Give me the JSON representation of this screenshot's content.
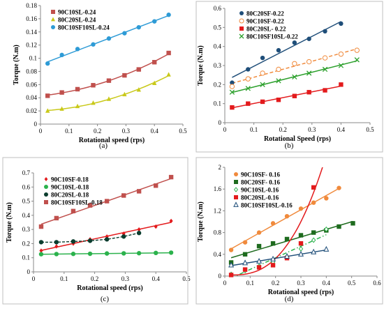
{
  "chart_data": [
    {
      "type": "line",
      "panel_label": "(a)",
      "xlabel": "Rotational speed (rps)",
      "ylabel": "Torque (N.m)",
      "xlim": [
        0,
        0.5
      ],
      "ylim": [
        0,
        0.18
      ],
      "xticks": [
        "0",
        "0.1",
        "0.2",
        "0.3",
        "0.4",
        "0.5"
      ],
      "yticks": [
        "0",
        "0.02",
        "0.04",
        "0.06",
        "0.08",
        "0.1",
        "0.12",
        "0.14",
        "0.16",
        "0.18"
      ],
      "legend_position": "top-left",
      "series": [
        {
          "name": "90C10SL-0.24",
          "color": "#c0504d",
          "marker": "square",
          "x": [
            0.025,
            0.075,
            0.13,
            0.185,
            0.24,
            0.295,
            0.345,
            0.4,
            0.45
          ],
          "y": [
            0.043,
            0.048,
            0.053,
            0.059,
            0.066,
            0.074,
            0.083,
            0.094,
            0.108
          ]
        },
        {
          "name": "80C20SL-0.24",
          "color": "#c9c91a",
          "marker": "triangle",
          "x": [
            0.025,
            0.075,
            0.13,
            0.185,
            0.24,
            0.295,
            0.345,
            0.4,
            0.45
          ],
          "y": [
            0.02,
            0.023,
            0.027,
            0.032,
            0.038,
            0.045,
            0.052,
            0.062,
            0.075
          ]
        },
        {
          "name": "80C10SF10SL-0.24",
          "color": "#2e9bd6",
          "marker": "circle",
          "x": [
            0.025,
            0.075,
            0.13,
            0.185,
            0.24,
            0.295,
            0.345,
            0.4,
            0.45
          ],
          "y": [
            0.092,
            0.105,
            0.114,
            0.121,
            0.13,
            0.138,
            0.147,
            0.156,
            0.166
          ]
        }
      ]
    },
    {
      "type": "line",
      "panel_label": "(b)",
      "xlabel": "Rotational Speed (rps)",
      "ylabel": "Torque (N.m)",
      "xlim": [
        0,
        0.5
      ],
      "ylim": [
        0,
        0.6
      ],
      "xticks": [
        "0",
        "0.1",
        "0.2",
        "0.3",
        "0.4",
        "0.5"
      ],
      "yticks": [
        "0",
        "0.1",
        "0.2",
        "0.3",
        "0.4",
        "0.5",
        "0.6"
      ],
      "legend_position": "top-left",
      "series": [
        {
          "name": "80C20SF-0.22",
          "color": "#1f4e79",
          "marker": "circle",
          "x": [
            0.025,
            0.08,
            0.13,
            0.185,
            0.24,
            0.29,
            0.345,
            0.4
          ],
          "y": [
            0.21,
            0.28,
            0.34,
            0.38,
            0.42,
            0.44,
            0.48,
            0.52
          ]
        },
        {
          "name": "90C10SF-0.22",
          "color": "#f08a3c",
          "marker": "open-circle",
          "x": [
            0.025,
            0.08,
            0.13,
            0.185,
            0.24,
            0.29,
            0.345,
            0.4,
            0.455
          ],
          "y": [
            0.19,
            0.23,
            0.26,
            0.28,
            0.31,
            0.32,
            0.34,
            0.36,
            0.38
          ]
        },
        {
          "name": "80C20SL- 0.22",
          "color": "#e31a1c",
          "marker": "square",
          "x": [
            0.025,
            0.08,
            0.13,
            0.185,
            0.24,
            0.29,
            0.345,
            0.4
          ],
          "y": [
            0.08,
            0.1,
            0.11,
            0.12,
            0.14,
            0.16,
            0.17,
            0.2
          ]
        },
        {
          "name": "80C10SF10SL-0.22",
          "color": "#2ca02c",
          "marker": "x",
          "x": [
            0.025,
            0.08,
            0.13,
            0.185,
            0.24,
            0.29,
            0.345,
            0.4,
            0.455
          ],
          "y": [
            0.16,
            0.18,
            0.2,
            0.22,
            0.24,
            0.26,
            0.28,
            0.3,
            0.33
          ]
        }
      ]
    },
    {
      "type": "line",
      "panel_label": "(c)",
      "xlabel": "Rotational speed (rps)",
      "ylabel": "Torque (N.m)",
      "xlim": [
        0,
        0.5
      ],
      "ylim": [
        0,
        0.7
      ],
      "xticks": [
        "0",
        "0.1",
        "0.2",
        "0.3",
        "0.4",
        "0.5"
      ],
      "yticks": [
        "0",
        "0.1",
        "0.2",
        "0.3",
        "0.4",
        "0.5",
        "0.6",
        "0.7"
      ],
      "legend_position": "top-left",
      "series": [
        {
          "name": "90C10SF-0.18",
          "color": "#e31a1c",
          "marker": "diamond",
          "x": [
            0.025,
            0.075,
            0.13,
            0.185,
            0.24,
            0.295,
            0.345,
            0.4,
            0.45
          ],
          "y": [
            0.15,
            0.18,
            0.2,
            0.23,
            0.25,
            0.27,
            0.3,
            0.32,
            0.36
          ]
        },
        {
          "name": "90C10SL-0.18",
          "color": "#2bb24c",
          "marker": "circle",
          "x": [
            0.025,
            0.075,
            0.13,
            0.185,
            0.24,
            0.295,
            0.345,
            0.4,
            0.45
          ],
          "y": [
            0.125,
            0.126,
            0.127,
            0.128,
            0.13,
            0.131,
            0.132,
            0.134,
            0.136
          ]
        },
        {
          "name": "80C20SL-0.18",
          "color": "#0b3d2e",
          "marker": "circle",
          "x": [
            0.025,
            0.075,
            0.13,
            0.185,
            0.24,
            0.295,
            0.345
          ],
          "y": [
            0.21,
            0.21,
            0.215,
            0.22,
            0.23,
            0.25,
            0.275
          ]
        },
        {
          "name": "80C10SF10SL-0.18",
          "color": "#c0504d",
          "marker": "square",
          "x": [
            0.025,
            0.075,
            0.13,
            0.185,
            0.24,
            0.295,
            0.345,
            0.4,
            0.45
          ],
          "y": [
            0.32,
            0.38,
            0.43,
            0.47,
            0.5,
            0.54,
            0.57,
            0.61,
            0.67
          ]
        }
      ]
    },
    {
      "type": "line",
      "panel_label": "(d)",
      "xlabel": "Rotational speed (rps)",
      "ylabel": "Torque (N.m)",
      "xlim": [
        0,
        0.6
      ],
      "ylim": [
        0,
        2
      ],
      "xticks": [
        "0",
        "0.1",
        "0.2",
        "0.3",
        "0.4",
        "0.5",
        "0.6"
      ],
      "yticks": [
        "0",
        "0.4",
        "0.8",
        "1.2",
        "1.6",
        "2"
      ],
      "legend_position": "top-left",
      "series": [
        {
          "name": "90C10SF- 0.16",
          "color": "#f08a3c",
          "marker": "circle",
          "x": [
            0.025,
            0.08,
            0.135,
            0.19,
            0.245,
            0.3,
            0.35,
            0.4,
            0.45
          ],
          "y": [
            0.48,
            0.62,
            0.8,
            0.97,
            1.1,
            1.24,
            1.35,
            1.43,
            1.62
          ]
        },
        {
          "name": "80C20SF- 0.16",
          "color": "#1e6b1e",
          "marker": "square",
          "x": [
            0.025,
            0.08,
            0.135,
            0.19,
            0.245,
            0.3,
            0.35,
            0.4,
            0.45,
            0.505
          ],
          "y": [
            0.25,
            0.4,
            0.55,
            0.6,
            0.68,
            0.75,
            0.8,
            0.84,
            0.91,
            0.97
          ]
        },
        {
          "name": "90C10SL-0.16",
          "color": "#2bb24c",
          "marker": "open-diamond",
          "x": [
            0.025,
            0.08,
            0.135,
            0.19,
            0.245,
            0.3,
            0.35,
            0.4
          ],
          "y": [
            0.03,
            0.1,
            0.18,
            0.26,
            0.36,
            0.5,
            0.66,
            0.86
          ]
        },
        {
          "name": "80C20SL-0.16",
          "color": "#e31a1c",
          "marker": "square",
          "x": [
            0.025,
            0.08,
            0.135,
            0.19,
            0.245,
            0.3,
            0.35
          ],
          "y": [
            0.02,
            0.12,
            0.16,
            0.2,
            0.33,
            0.6,
            1.63
          ]
        },
        {
          "name": "80C10SF10SL-0.16",
          "color": "#1f4e79",
          "marker": "open-triangle",
          "x": [
            0.025,
            0.08,
            0.135,
            0.19,
            0.245,
            0.3,
            0.35,
            0.4
          ],
          "y": [
            0.2,
            0.24,
            0.27,
            0.31,
            0.36,
            0.4,
            0.44,
            0.49
          ]
        }
      ]
    }
  ]
}
